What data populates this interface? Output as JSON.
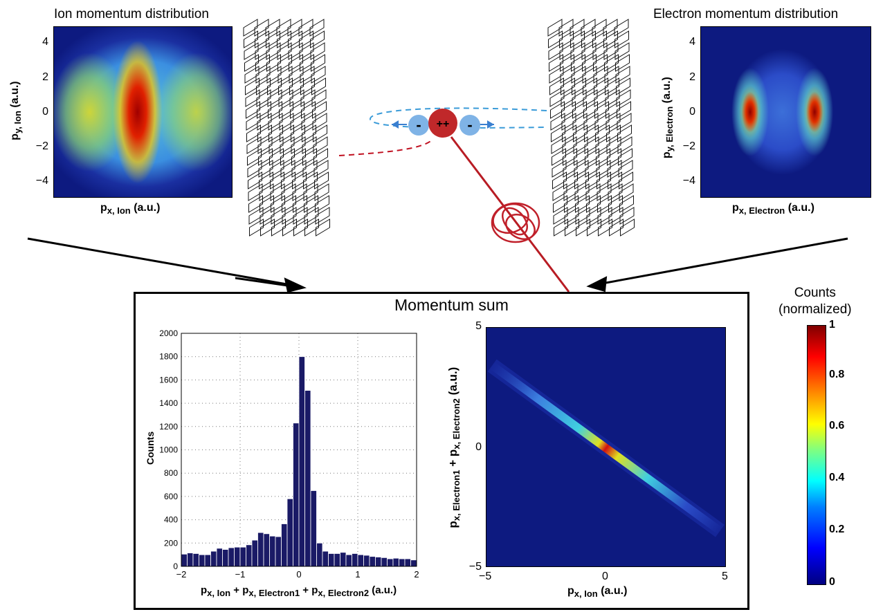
{
  "ion_panel": {
    "title": "Ion momentum distribution",
    "yticks": [
      "4",
      "2",
      "0",
      "−2",
      "−4"
    ],
    "ylabel_main": "p",
    "ylabel_sub": "y, Ion",
    "ylabel_unit": "(a.u.)",
    "xlabel_main": "p",
    "xlabel_sub": "x, Ion",
    "xlabel_unit": "(a.u.)"
  },
  "electron_panel": {
    "title": "Electron momentum distribution",
    "yticks": [
      "4",
      "2",
      "0",
      "−2",
      "−4"
    ],
    "ylabel_main": "p",
    "ylabel_sub": "y, Electron",
    "ylabel_unit": "(a.u.)",
    "xlabel_main": "p",
    "xlabel_sub": "x, Electron",
    "xlabel_unit": "(a.u.)"
  },
  "particles": {
    "ion_label": "++",
    "electron_label": "-"
  },
  "momentum_sum": {
    "title": "Momentum sum"
  },
  "histogram": {
    "ylabel": "Counts",
    "xlabel_parts": [
      "p",
      "x, Ion",
      " + p",
      "x, Electron1",
      " + p",
      "x, Electron2",
      " (a.u.)"
    ]
  },
  "scatter": {
    "yticks": [
      "5",
      "0",
      "−5"
    ],
    "xticks": [
      "−5",
      "0",
      "5"
    ],
    "xlabel_main": "p",
    "xlabel_sub": "x, Ion",
    "xlabel_unit": "(a.u.)",
    "ylabel_parts": [
      "p",
      "x, Electron1",
      " + p",
      "x, Electron2",
      " (a.u.)"
    ]
  },
  "colorbar": {
    "title_line1": "Counts",
    "title_line2": "(normalized)",
    "ticks": [
      "1",
      "0.8",
      "0.6",
      "0.4",
      "0.2",
      "0"
    ],
    "colors": [
      "#000080",
      "#0000ff",
      "#00ffff",
      "#ffff00",
      "#ff0000",
      "#800000"
    ]
  },
  "chart_data": [
    {
      "type": "bar",
      "title": "",
      "xlabel": "px, Ion + px, Electron1 + px, Electron2 (a.u.)",
      "ylabel": "Counts",
      "xlim": [
        -2,
        2
      ],
      "ylim": [
        0,
        2000
      ],
      "xticks": [
        "−2",
        "−1",
        "0",
        "1",
        "2"
      ],
      "yticks": [
        "0",
        "200",
        "400",
        "600",
        "800",
        "1000",
        "1200",
        "1400",
        "1600",
        "1800",
        "2000"
      ],
      "grid": true,
      "bar_color": "#1a1a66",
      "x": [
        -1.95,
        -1.85,
        -1.75,
        -1.65,
        -1.55,
        -1.45,
        -1.35,
        -1.25,
        -1.15,
        -1.05,
        -0.95,
        -0.85,
        -0.75,
        -0.65,
        -0.55,
        -0.45,
        -0.35,
        -0.25,
        -0.15,
        -0.05,
        0.05,
        0.15,
        0.25,
        0.35,
        0.45,
        0.55,
        0.65,
        0.75,
        0.85,
        0.95,
        1.05,
        1.15,
        1.25,
        1.35,
        1.45,
        1.55,
        1.65,
        1.75,
        1.85,
        1.95
      ],
      "values": [
        105,
        115,
        110,
        100,
        100,
        130,
        155,
        145,
        160,
        165,
        165,
        185,
        225,
        290,
        280,
        260,
        255,
        365,
        580,
        1230,
        1800,
        1510,
        650,
        200,
        130,
        110,
        110,
        120,
        100,
        110,
        100,
        95,
        85,
        80,
        75,
        65,
        70,
        65,
        65,
        55
      ]
    },
    {
      "type": "heatmap",
      "title": "",
      "xlabel": "px, Ion (a.u.)",
      "ylabel": "px, Electron1 + px, Electron2 (a.u.)",
      "xlim": [
        -5,
        5
      ],
      "ylim": [
        -5,
        5
      ],
      "colorbar_range": [
        0,
        1
      ]
    }
  ]
}
